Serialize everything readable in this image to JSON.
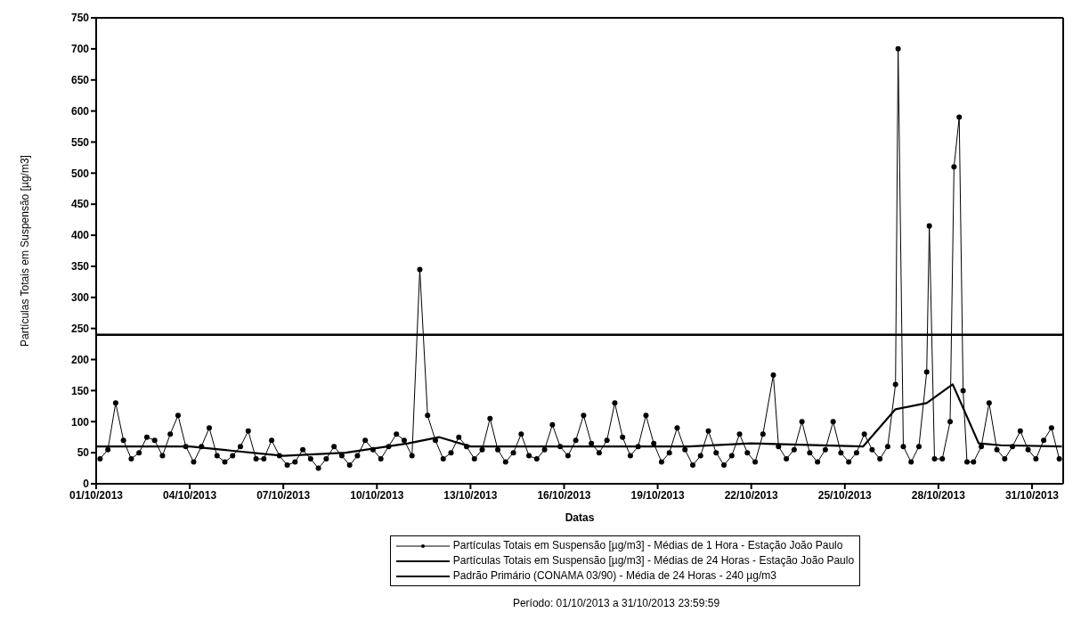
{
  "chart_data": {
    "type": "line",
    "xlabel": "Datas",
    "ylabel": "Partículas Totais em Suspensão [µg/m3]",
    "xlim": [
      "2013-10-01",
      "2013-11-01"
    ],
    "xticks": [
      {
        "value": "2013-10-01",
        "label": "01/10/2013"
      },
      {
        "value": "2013-10-04",
        "label": "04/10/2013"
      },
      {
        "value": "2013-10-07",
        "label": "07/10/2013"
      },
      {
        "value": "2013-10-10",
        "label": "10/10/2013"
      },
      {
        "value": "2013-10-13",
        "label": "13/10/2013"
      },
      {
        "value": "2013-10-16",
        "label": "16/10/2013"
      },
      {
        "value": "2013-10-19",
        "label": "19/10/2013"
      },
      {
        "value": "2013-10-22",
        "label": "22/10/2013"
      },
      {
        "value": "2013-10-25",
        "label": "25/10/2013"
      },
      {
        "value": "2013-10-28",
        "label": "28/10/2013"
      },
      {
        "value": "2013-10-31",
        "label": "31/10/2013"
      }
    ],
    "ylim": [
      0,
      750
    ],
    "yticks": [
      0,
      50,
      100,
      150,
      200,
      250,
      300,
      350,
      400,
      450,
      500,
      550,
      600,
      650,
      700,
      750
    ],
    "grid": false,
    "legend": "bottom",
    "line_style": "solid",
    "series": [
      {
        "name": "Partículas Totais em Suspensão [µg/m3] - Médias de 1 Hora - Estação João Paulo",
        "color": "#000000",
        "marker": "circle",
        "x": [
          "2013-10-01T03:00",
          "2013-10-01T09:00",
          "2013-10-01T15:00",
          "2013-10-01T21:00",
          "2013-10-02T03:00",
          "2013-10-02T09:00",
          "2013-10-02T15:00",
          "2013-10-02T21:00",
          "2013-10-03T03:00",
          "2013-10-03T09:00",
          "2013-10-03T15:00",
          "2013-10-03T21:00",
          "2013-10-04T03:00",
          "2013-10-04T09:00",
          "2013-10-04T15:00",
          "2013-10-04T21:00",
          "2013-10-05T03:00",
          "2013-10-05T09:00",
          "2013-10-05T15:00",
          "2013-10-05T21:00",
          "2013-10-06T03:00",
          "2013-10-06T09:00",
          "2013-10-06T15:00",
          "2013-10-06T21:00",
          "2013-10-07T03:00",
          "2013-10-07T09:00",
          "2013-10-07T15:00",
          "2013-10-07T21:00",
          "2013-10-08T03:00",
          "2013-10-08T09:00",
          "2013-10-08T15:00",
          "2013-10-08T21:00",
          "2013-10-09T03:00",
          "2013-10-09T09:00",
          "2013-10-09T15:00",
          "2013-10-09T21:00",
          "2013-10-10T03:00",
          "2013-10-10T09:00",
          "2013-10-10T15:00",
          "2013-10-10T21:00",
          "2013-10-11T03:00",
          "2013-10-11T09:00",
          "2013-10-11T15:00",
          "2013-10-11T21:00",
          "2013-10-12T03:00",
          "2013-10-12T09:00",
          "2013-10-12T15:00",
          "2013-10-12T21:00",
          "2013-10-13T03:00",
          "2013-10-13T09:00",
          "2013-10-13T15:00",
          "2013-10-13T21:00",
          "2013-10-14T03:00",
          "2013-10-14T09:00",
          "2013-10-14T15:00",
          "2013-10-14T21:00",
          "2013-10-15T03:00",
          "2013-10-15T09:00",
          "2013-10-15T15:00",
          "2013-10-15T21:00",
          "2013-10-16T03:00",
          "2013-10-16T09:00",
          "2013-10-16T15:00",
          "2013-10-16T21:00",
          "2013-10-17T03:00",
          "2013-10-17T09:00",
          "2013-10-17T15:00",
          "2013-10-17T21:00",
          "2013-10-18T03:00",
          "2013-10-18T09:00",
          "2013-10-18T15:00",
          "2013-10-18T21:00",
          "2013-10-19T03:00",
          "2013-10-19T09:00",
          "2013-10-19T15:00",
          "2013-10-19T21:00",
          "2013-10-20T03:00",
          "2013-10-20T09:00",
          "2013-10-20T15:00",
          "2013-10-20T21:00",
          "2013-10-21T03:00",
          "2013-10-21T09:00",
          "2013-10-21T15:00",
          "2013-10-21T21:00",
          "2013-10-22T03:00",
          "2013-10-22T09:00",
          "2013-10-22T17:00",
          "2013-10-22T21:00",
          "2013-10-23T03:00",
          "2013-10-23T09:00",
          "2013-10-23T15:00",
          "2013-10-23T21:00",
          "2013-10-24T03:00",
          "2013-10-24T09:00",
          "2013-10-24T15:00",
          "2013-10-24T21:00",
          "2013-10-25T03:00",
          "2013-10-25T09:00",
          "2013-10-25T15:00",
          "2013-10-25T21:00",
          "2013-10-26T03:00",
          "2013-10-26T09:00",
          "2013-10-26T15:00",
          "2013-10-26T17:00",
          "2013-10-26T21:00",
          "2013-10-27T03:00",
          "2013-10-27T09:00",
          "2013-10-27T15:00",
          "2013-10-27T17:00",
          "2013-10-27T21:00",
          "2013-10-28T03:00",
          "2013-10-28T09:00",
          "2013-10-28T12:00",
          "2013-10-28T16:00",
          "2013-10-28T19:00",
          "2013-10-28T22:00",
          "2013-10-29T03:00",
          "2013-10-29T09:00",
          "2013-10-29T15:00",
          "2013-10-29T21:00",
          "2013-10-30T03:00",
          "2013-10-30T09:00",
          "2013-10-30T15:00",
          "2013-10-30T21:00",
          "2013-10-31T03:00",
          "2013-10-31T09:00",
          "2013-10-31T15:00",
          "2013-10-31T21:00"
        ],
        "values": [
          40,
          55,
          130,
          70,
          40,
          50,
          75,
          70,
          45,
          80,
          110,
          60,
          35,
          60,
          90,
          45,
          35,
          45,
          60,
          85,
          40,
          40,
          70,
          45,
          30,
          35,
          55,
          40,
          25,
          40,
          60,
          45,
          30,
          45,
          70,
          55,
          40,
          60,
          80,
          70,
          45,
          345,
          110,
          70,
          40,
          50,
          75,
          60,
          40,
          55,
          105,
          55,
          35,
          50,
          80,
          45,
          40,
          55,
          95,
          60,
          45,
          70,
          110,
          65,
          50,
          70,
          130,
          75,
          45,
          60,
          110,
          65,
          35,
          50,
          90,
          55,
          30,
          45,
          85,
          50,
          30,
          45,
          80,
          50,
          35,
          80,
          175,
          60,
          40,
          55,
          100,
          50,
          35,
          55,
          100,
          50,
          35,
          50,
          80,
          55,
          40,
          60,
          160,
          700,
          60,
          35,
          60,
          180,
          415,
          40,
          40,
          100,
          510,
          590,
          150,
          35,
          35,
          60,
          130,
          55,
          40,
          60,
          85,
          55,
          40,
          70,
          90,
          40
        ]
      },
      {
        "name": "Partículas Totais em Suspensão [µg/m3] - Médias de 24 Horas - Estação João Paulo",
        "color": "#000000",
        "marker": "none",
        "x": [
          "2013-10-01T00:00",
          "2013-10-04T00:00",
          "2013-10-07T00:00",
          "2013-10-09T00:00",
          "2013-10-11T00:00",
          "2013-10-12T00:00",
          "2013-10-13T00:00",
          "2013-10-20T00:00",
          "2013-10-22T00:00",
          "2013-10-25T14:00",
          "2013-10-26T15:00",
          "2013-10-27T15:00",
          "2013-10-28T11:00",
          "2013-10-29T07:00",
          "2013-10-30T00:00",
          "2013-10-31T23:00"
        ],
        "values": [
          60,
          60,
          45,
          50,
          65,
          75,
          60,
          60,
          65,
          60,
          120,
          130,
          160,
          65,
          62,
          60
        ]
      }
    ],
    "ref_lines": [
      {
        "axis": "y",
        "value": 240,
        "label": "Padrão Primário (CONAMA 03/90) - Média de 24 Horas - 240 µg/m3",
        "color": "#000000",
        "line_style": "solid"
      }
    ],
    "annotations": [
      "Período: 01/10/2013 a 31/10/2013 23:59:59"
    ]
  }
}
